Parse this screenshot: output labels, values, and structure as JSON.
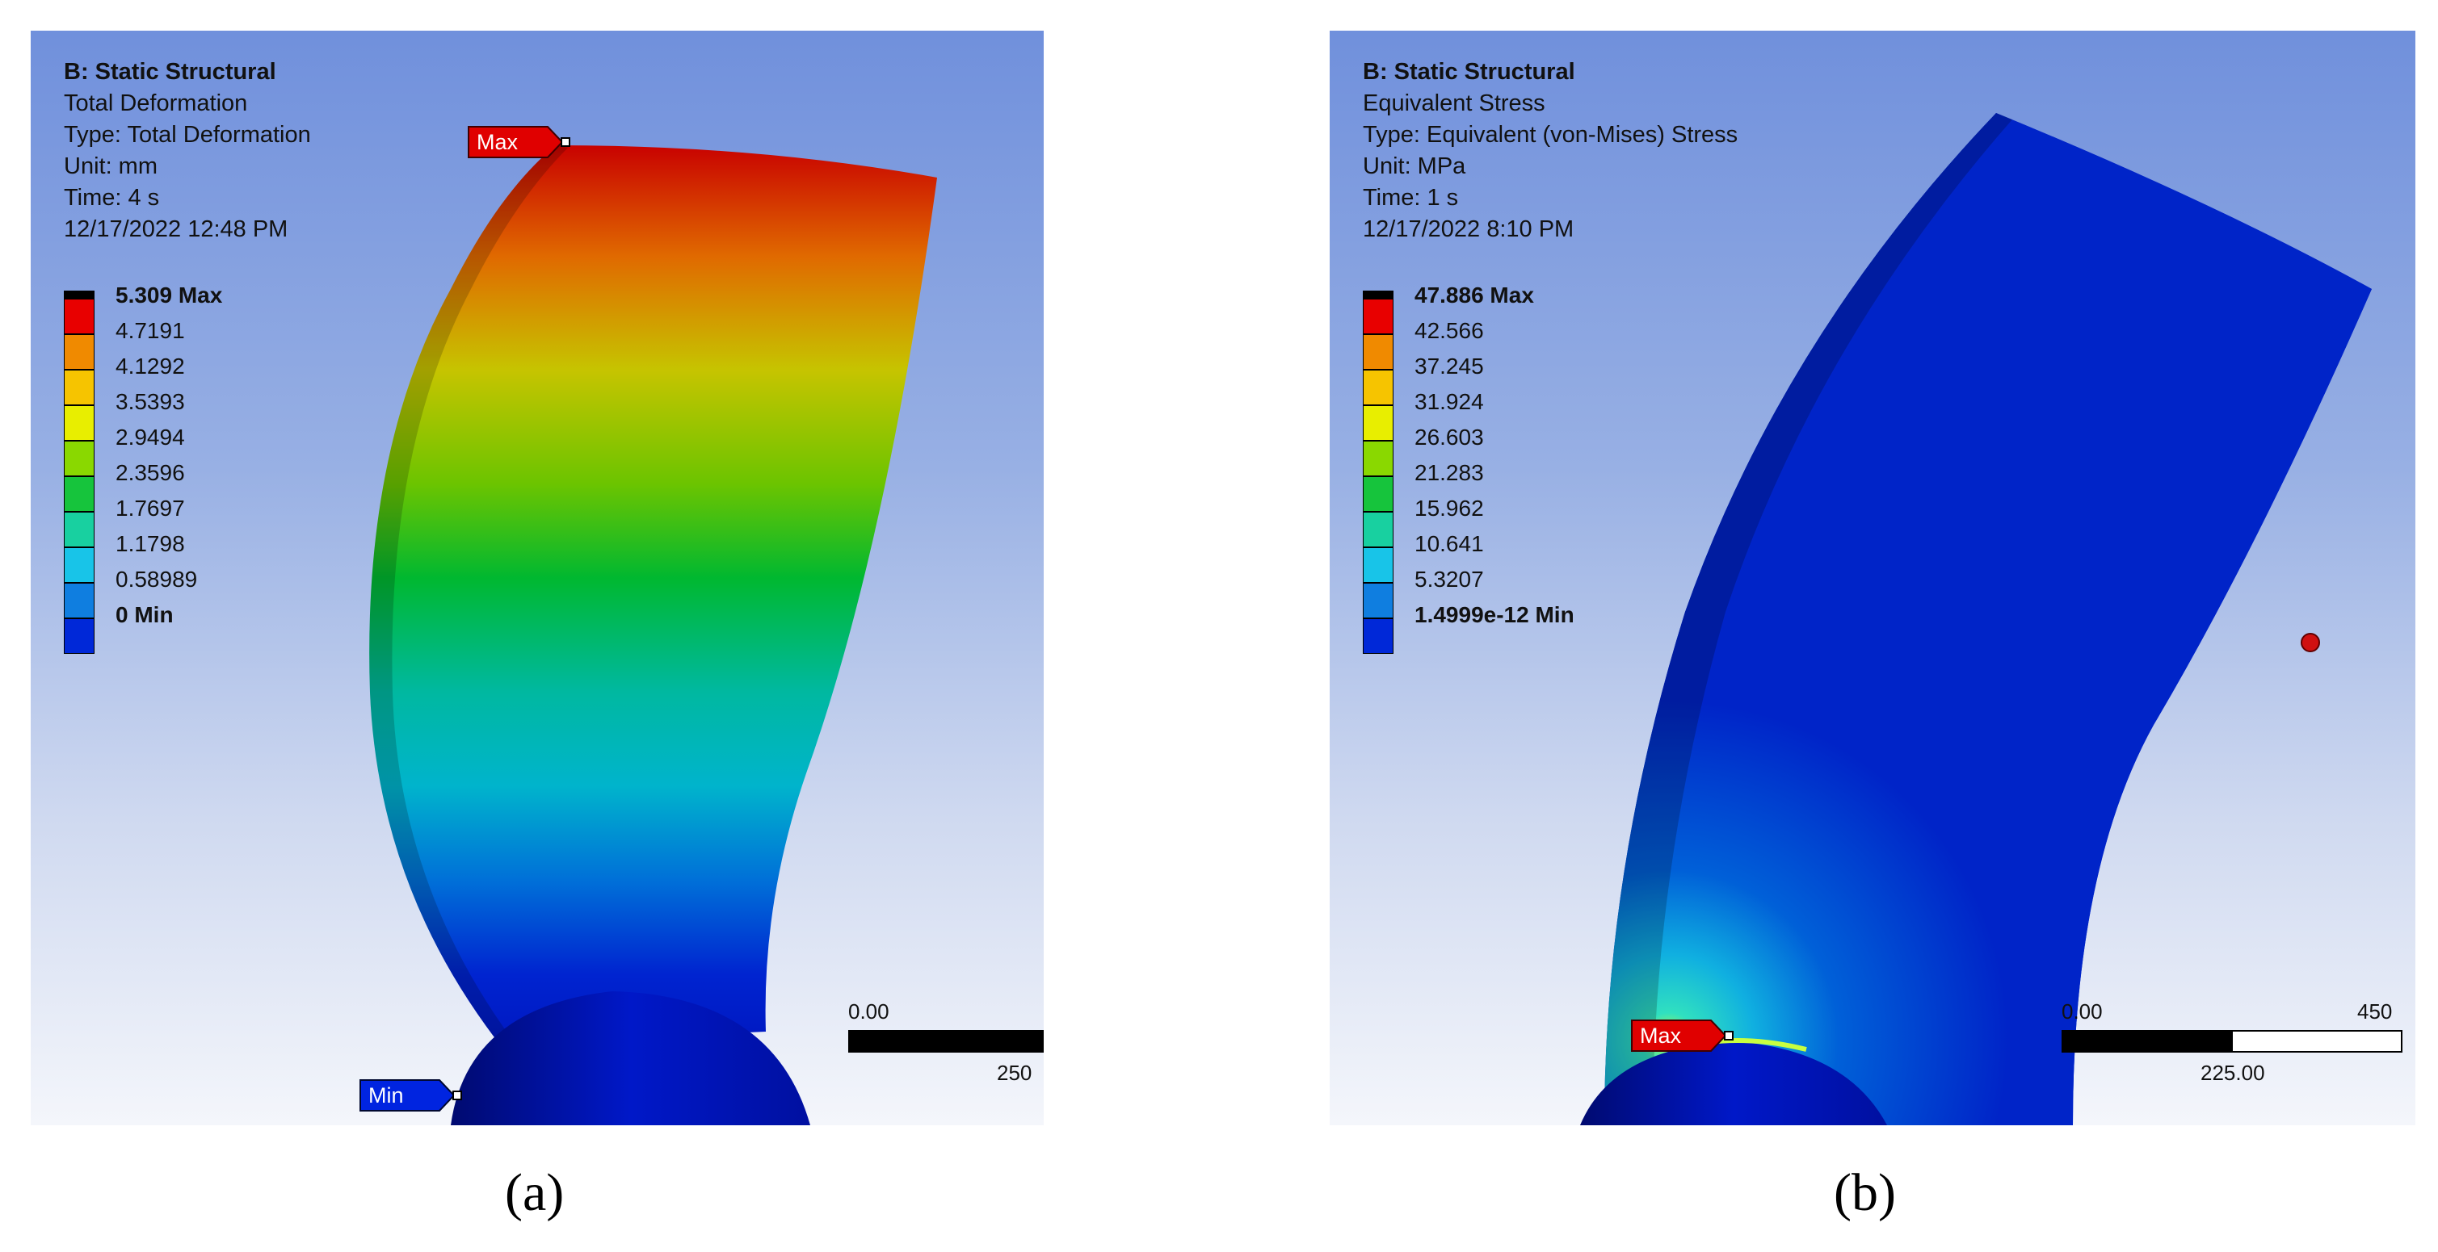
{
  "panel_a": {
    "info": {
      "title": "B: Static Structural",
      "result": "Total Deformation",
      "type": "Type: Total Deformation",
      "unit": "Unit: mm",
      "time": "Time: 4 s",
      "date": "12/17/2022 12:48 PM"
    },
    "legend": {
      "max_label": "5.309 Max",
      "levels": [
        "4.7191",
        "4.1292",
        "3.5393",
        "2.9494",
        "2.3596",
        "1.7697",
        "1.1798",
        "0.58989"
      ],
      "min_label": "0 Min",
      "colors": [
        "#e80000",
        "#f08a00",
        "#f6c400",
        "#e8ee00",
        "#8ad800",
        "#16c43c",
        "#18d0a0",
        "#18c4e8",
        "#0f7ee0",
        "#0028d8"
      ]
    },
    "scale": {
      "start": "0.00",
      "end": "250"
    },
    "tags": {
      "max": "Max",
      "min": "Min"
    },
    "caption": "(a)"
  },
  "panel_b": {
    "info": {
      "title": "B: Static Structural",
      "result": "Equivalent Stress",
      "type": "Type: Equivalent (von-Mises) Stress",
      "unit": "Unit: MPa",
      "time": "Time: 1 s",
      "date": "12/17/2022 8:10 PM"
    },
    "legend": {
      "max_label": "47.886 Max",
      "levels": [
        "42.566",
        "37.245",
        "31.924",
        "26.603",
        "21.283",
        "15.962",
        "10.641",
        "5.3207"
      ],
      "min_label": "1.4999e-12 Min",
      "colors": [
        "#e80000",
        "#f08a00",
        "#f6c400",
        "#e8ee00",
        "#8ad800",
        "#16c43c",
        "#18d0a0",
        "#18c4e8",
        "#0f7ee0",
        "#0028d8"
      ]
    },
    "scale": {
      "start": "0.00",
      "mid": "225.00",
      "end": "450"
    },
    "tags": {
      "max": "Max"
    },
    "caption": "(b)"
  }
}
